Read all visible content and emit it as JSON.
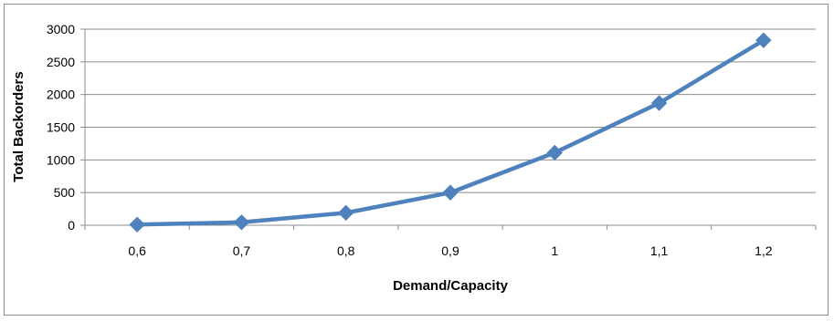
{
  "chart_data": {
    "type": "line",
    "title": "",
    "xlabel": "Demand/Capacity",
    "ylabel": "Total Backorders",
    "categories": [
      "0,6",
      "0,7",
      "0,8",
      "0,9",
      "1",
      "1,1",
      "1,2"
    ],
    "series": [
      {
        "values": [
          10,
          45,
          190,
          500,
          1110,
          1870,
          2830
        ],
        "color": "#4f81bd",
        "marker": "diamond"
      }
    ],
    "ylim": [
      0,
      3000
    ],
    "yticks": [
      "0",
      "500",
      "1000",
      "1500",
      "2000",
      "2500",
      "3000"
    ],
    "grid": true,
    "legend": "none"
  }
}
